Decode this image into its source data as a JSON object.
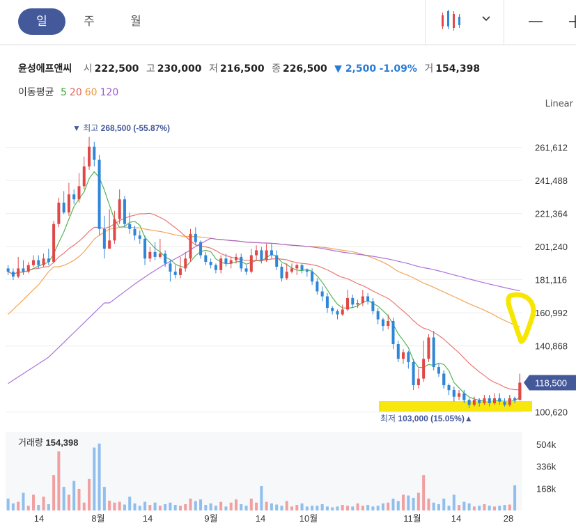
{
  "tabs": [
    {
      "label": "일",
      "active": true
    },
    {
      "label": "주",
      "active": false
    },
    {
      "label": "월",
      "active": false
    }
  ],
  "toolbar": {
    "chart_icon": "candlestick-icon",
    "dropdown_icon": "chevron-down-icon",
    "min_icon": "minimize-icon",
    "extra_icon": "plus-icon"
  },
  "stock": {
    "name": "윤성에프앤씨",
    "open_label": "시",
    "open": "222,500",
    "high_label": "고",
    "high": "230,000",
    "low_label": "저",
    "low": "216,500",
    "close_label": "종",
    "close": "226,500",
    "change": "▼ 2,500",
    "change_pct": "-1.09%",
    "volume_label": "거",
    "volume": "154,398"
  },
  "ma": {
    "label": "이동평균",
    "periods": [
      {
        "p": "5",
        "color": "#36a836"
      },
      {
        "p": "20",
        "color": "#e8625a"
      },
      {
        "p": "60",
        "color": "#f0953a"
      },
      {
        "p": "120",
        "color": "#9b59d0"
      }
    ]
  },
  "scale_label": "Linear",
  "annotations": {
    "high_prefix": "▼ 최고",
    "high_value": "268,500 (-55.87%)",
    "low_prefix": "최저",
    "low_value": "103,000 (15.05%)▲",
    "current_price": "118,500"
  },
  "volume_panel": {
    "label": "거래량",
    "value": "154,398",
    "ticks": [
      "504k",
      "336k",
      "168k"
    ]
  },
  "colors": {
    "up": "#e04848",
    "down": "#2f86d8",
    "accent": "#44599a",
    "highlight": "#f7e600"
  },
  "chart_data": {
    "type": "candlestick",
    "y_ticks": [
      "261,612",
      "241,488",
      "221,364",
      "201,240",
      "181,116",
      "160,992",
      "140,868",
      "100,620"
    ],
    "ylim": [
      95000,
      275000
    ],
    "x_labels": [
      "14",
      "8월",
      "14",
      "9월",
      "14",
      "10월",
      "11월",
      "14",
      "28"
    ],
    "candles": [
      [
        188,
        186,
        190,
        184
      ],
      [
        186,
        183,
        188,
        181
      ],
      [
        183,
        188,
        195,
        182
      ],
      [
        188,
        186,
        193,
        184
      ],
      [
        186,
        190,
        192,
        185
      ],
      [
        190,
        193,
        196,
        189
      ],
      [
        193,
        190,
        196,
        188
      ],
      [
        190,
        194,
        197,
        189
      ],
      [
        194,
        192,
        200,
        190
      ],
      [
        192,
        215,
        217,
        191
      ],
      [
        215,
        228,
        231,
        213
      ],
      [
        228,
        222,
        235,
        221
      ],
      [
        222,
        233,
        240,
        220
      ],
      [
        233,
        230,
        236,
        227
      ],
      [
        230,
        238,
        246,
        228
      ],
      [
        238,
        250,
        256,
        236
      ],
      [
        250,
        262,
        268,
        248
      ],
      [
        262,
        254,
        265,
        250
      ],
      [
        254,
        212,
        257,
        208
      ],
      [
        212,
        200,
        220,
        194
      ],
      [
        200,
        205,
        224,
        200
      ],
      [
        205,
        218,
        223,
        203
      ],
      [
        218,
        230,
        236,
        215
      ],
      [
        230,
        215,
        232,
        213
      ],
      [
        215,
        212,
        222,
        209
      ],
      [
        212,
        208,
        214,
        205
      ],
      [
        208,
        206,
        211,
        203
      ],
      [
        206,
        194,
        208,
        190
      ],
      [
        194,
        198,
        201,
        192
      ],
      [
        198,
        195,
        204,
        193
      ],
      [
        195,
        197,
        206,
        194
      ],
      [
        197,
        191,
        199,
        189
      ],
      [
        191,
        186,
        193,
        180
      ],
      [
        186,
        184,
        190,
        182
      ],
      [
        184,
        188,
        195,
        182
      ],
      [
        188,
        194,
        198,
        186
      ],
      [
        194,
        209,
        212,
        192
      ],
      [
        209,
        204,
        213,
        202
      ],
      [
        204,
        196,
        205,
        194
      ],
      [
        196,
        192,
        198,
        190
      ],
      [
        192,
        190,
        194,
        188
      ],
      [
        190,
        187,
        191,
        185
      ],
      [
        187,
        194,
        196,
        185
      ],
      [
        194,
        191,
        197,
        189
      ],
      [
        191,
        193,
        195,
        188
      ],
      [
        193,
        195,
        197,
        191
      ],
      [
        195,
        188,
        197,
        186
      ],
      [
        188,
        186,
        190,
        184
      ],
      [
        186,
        196,
        200,
        185
      ],
      [
        196,
        199,
        202,
        193
      ],
      [
        199,
        193,
        201,
        191
      ],
      [
        193,
        199,
        203,
        192
      ],
      [
        199,
        196,
        203,
        194
      ],
      [
        196,
        189,
        199,
        187
      ],
      [
        189,
        182,
        191,
        180
      ],
      [
        182,
        186,
        191,
        181
      ],
      [
        186,
        188,
        191,
        185
      ],
      [
        188,
        190,
        191,
        184
      ],
      [
        190,
        187,
        191,
        185
      ],
      [
        187,
        186,
        188,
        183
      ],
      [
        186,
        180,
        188,
        178
      ],
      [
        180,
        174,
        182,
        172
      ],
      [
        174,
        171,
        177,
        168
      ],
      [
        171,
        164,
        173,
        161
      ],
      [
        164,
        162,
        165,
        160
      ],
      [
        162,
        160,
        163,
        157
      ],
      [
        160,
        163,
        166,
        159
      ],
      [
        163,
        170,
        175,
        162
      ],
      [
        170,
        166,
        172,
        164
      ],
      [
        166,
        167,
        169,
        164
      ],
      [
        167,
        171,
        175,
        165
      ],
      [
        171,
        168,
        173,
        166
      ],
      [
        168,
        162,
        170,
        160
      ],
      [
        162,
        157,
        164,
        154
      ],
      [
        157,
        153,
        158,
        150
      ],
      [
        153,
        156,
        160,
        151
      ],
      [
        156,
        142,
        158,
        139
      ],
      [
        142,
        133,
        144,
        131
      ],
      [
        133,
        137,
        139,
        130
      ],
      [
        137,
        131,
        138,
        127
      ],
      [
        131,
        117,
        133,
        114
      ],
      [
        117,
        121,
        127,
        115
      ],
      [
        121,
        133,
        144,
        119
      ],
      [
        133,
        146,
        148,
        131
      ],
      [
        146,
        128,
        150,
        126
      ],
      [
        128,
        124,
        130,
        122
      ],
      [
        124,
        117,
        126,
        115
      ],
      [
        117,
        114,
        118,
        111
      ],
      [
        114,
        110,
        116,
        107
      ],
      [
        110,
        112,
        114,
        108
      ],
      [
        112,
        108,
        114,
        106
      ],
      [
        108,
        105,
        109,
        103
      ],
      [
        105,
        108,
        110,
        104
      ],
      [
        108,
        106,
        109,
        104
      ],
      [
        106,
        109,
        111,
        105
      ],
      [
        109,
        106,
        111,
        104
      ],
      [
        106,
        109,
        112,
        105
      ],
      [
        109,
        107,
        112,
        105
      ],
      [
        107,
        105,
        109,
        104
      ],
      [
        105,
        109,
        111,
        104
      ],
      [
        109,
        108,
        110,
        106
      ],
      [
        108,
        118.5,
        124,
        108
      ]
    ],
    "ma_series": [
      {
        "name": "5",
        "color": "#36a836"
      },
      {
        "name": "20",
        "color": "#e8625a"
      },
      {
        "name": "60",
        "color": "#f0953a"
      },
      {
        "name": "120",
        "color": "#9b59d0"
      }
    ],
    "ma60_start": [
      160,
      163,
      166,
      169,
      172,
      175,
      178,
      182,
      186,
      189
    ],
    "ma120_start": [
      118,
      120,
      122,
      124,
      126,
      128,
      130,
      132,
      134,
      137,
      140,
      143,
      146,
      149,
      152,
      155,
      158,
      161,
      164,
      167
    ],
    "volume": [
      30,
      18,
      22,
      45,
      12,
      40,
      14,
      35,
      16,
      90,
      150,
      60,
      40,
      75,
      55,
      20,
      80,
      160,
      170,
      60,
      25,
      20,
      22,
      15,
      35,
      18,
      12,
      22,
      14,
      20,
      12,
      16,
      20,
      14,
      12,
      16,
      30,
      24,
      28,
      14,
      18,
      12,
      22,
      10,
      20,
      28,
      16,
      12,
      30,
      20,
      62,
      22,
      18,
      15,
      12,
      24,
      10,
      14,
      18,
      10,
      12,
      12,
      16,
      10,
      8,
      10,
      14,
      12,
      10,
      18,
      12,
      14,
      10,
      12,
      18,
      20,
      30,
      24,
      40,
      38,
      32,
      45,
      90,
      30,
      20,
      16,
      30,
      12,
      40,
      14,
      22,
      18,
      10,
      12,
      16,
      12,
      10,
      12,
      14,
      15,
      64
    ],
    "volume_ticks": [
      504000,
      336000,
      168000
    ]
  }
}
